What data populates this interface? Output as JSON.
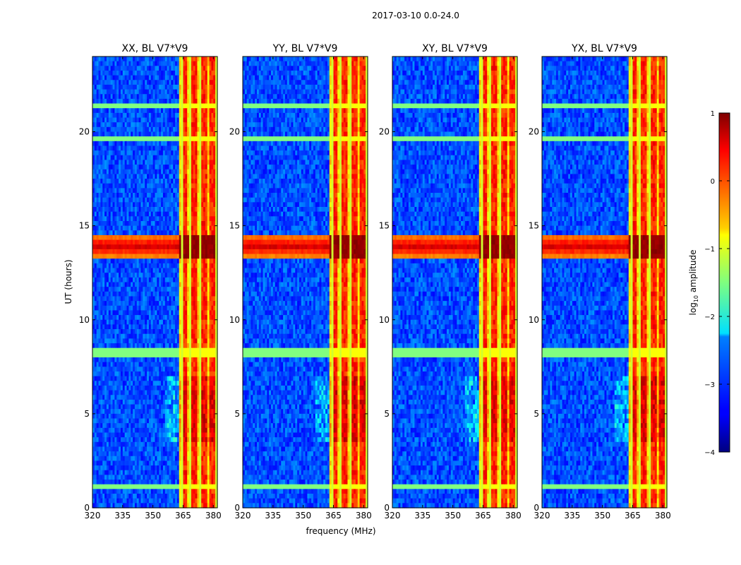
{
  "chart_data": {
    "type": "heatmap",
    "suptitle": "2017-03-10 0.0-24.0",
    "xlabel": "frequency (MHz)",
    "ylabel": "UT (hours)",
    "xlim": [
      320,
      382
    ],
    "ylim": [
      0,
      24
    ],
    "xticks": [
      320,
      335,
      350,
      365,
      380
    ],
    "yticks": [
      0,
      5,
      10,
      15,
      20
    ],
    "panels": [
      {
        "title": "XX, BL V7*V9"
      },
      {
        "title": "YY, BL V7*V9"
      },
      {
        "title": "XY, BL V7*V9"
      },
      {
        "title": "YX, BL V7*V9"
      }
    ],
    "colorbar": {
      "label_prefix": "log",
      "label_sub": "10",
      "label_suffix": " amplitude",
      "min": -4,
      "max": 1,
      "ticks": [
        1,
        0,
        -1,
        -2,
        -3,
        -4
      ],
      "tick_labels": [
        "1",
        "0",
        "−1",
        "−2",
        "−3",
        "−4"
      ]
    },
    "features": {
      "background_level": -3.0,
      "rfi_band_mhz": [
        363.5,
        380.5
      ],
      "rfi_band_level": -0.7,
      "rfi_channels_mhz": [
        365.5,
        370.5,
        375.5,
        379.5
      ],
      "rfi_channel_level": 0.2,
      "flagged_gaps_mhz": [
        364.8,
        368.3,
        373.2,
        378.0,
        381.2
      ],
      "strong_burst_ut": [
        13.3,
        14.5
      ],
      "strong_burst_level": 0.8,
      "enhanced_interval_ut": [
        3.5,
        7.0
      ],
      "enhanced_level": 0.3,
      "flagged_time_bands_ut": [
        [
          19.4,
          19.8
        ],
        [
          21.2,
          21.6
        ],
        [
          8.1,
          8.6
        ],
        [
          0.9,
          1.2
        ]
      ]
    }
  }
}
